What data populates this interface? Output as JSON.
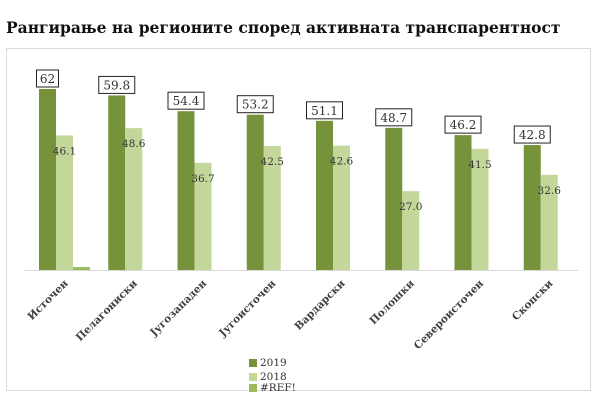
{
  "title": "Рангирање на регионите според активната транспарентност",
  "chart_data": {
    "type": "bar",
    "categories": [
      "Источен",
      "Пелагониски",
      "Југозападен",
      "Југоисточен",
      "Вардарски",
      "Полошки",
      "Североисточен",
      "Скопски"
    ],
    "series": [
      {
        "name": "2019",
        "color": "#76933c",
        "values": [
          62,
          59.8,
          54.4,
          53.2,
          51.1,
          48.7,
          46.2,
          42.8
        ],
        "labels": [
          "62",
          "59.8",
          "54.4",
          "53.2",
          "51.1",
          "48.7",
          "46.2",
          "42.8"
        ],
        "boxed": true
      },
      {
        "name": "2018",
        "color": "#c4d79b",
        "values": [
          46.1,
          48.6,
          36.7,
          42.5,
          42.6,
          27.0,
          41.5,
          32.6
        ],
        "labels": [
          "46.1",
          "48.6",
          "36.7",
          "42.5",
          "42.6",
          "27.0",
          "41.5",
          "32.6"
        ],
        "boxed": false
      },
      {
        "name": "#REF!",
        "color": "#9bbb59",
        "values": [
          1,
          0,
          0,
          0,
          0,
          0,
          0,
          0
        ],
        "labels": [],
        "boxed": false
      }
    ],
    "ylim": [
      0,
      62
    ],
    "grid": false,
    "legend_position": "bottom"
  }
}
